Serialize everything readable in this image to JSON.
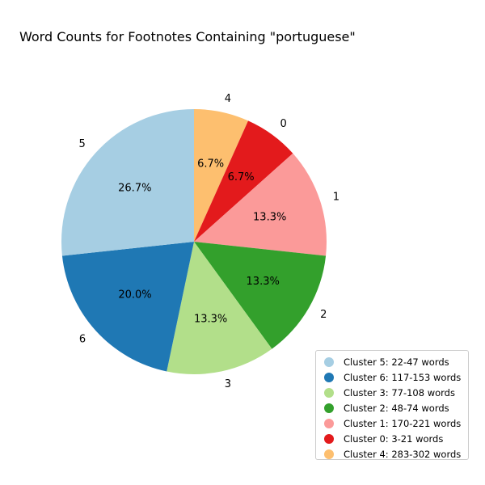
{
  "chart_data": {
    "type": "pie",
    "title": "Word Counts for Footnotes Containing \"portuguese\"",
    "start_angle_deg": 90,
    "direction": "clockwise",
    "slices": [
      {
        "label": "4",
        "value": 6.7,
        "pct_label": "6.7%",
        "color": "#fdbf6f"
      },
      {
        "label": "0",
        "value": 6.7,
        "pct_label": "6.7%",
        "color": "#e31a1c"
      },
      {
        "label": "1",
        "value": 13.3,
        "pct_label": "13.3%",
        "color": "#fb9a99"
      },
      {
        "label": "2",
        "value": 13.3,
        "pct_label": "13.3%",
        "color": "#33a02c"
      },
      {
        "label": "3",
        "value": 13.3,
        "pct_label": "13.3%",
        "color": "#b2df8a"
      },
      {
        "label": "6",
        "value": 20.0,
        "pct_label": "20.0%",
        "color": "#1f78b4"
      },
      {
        "label": "5",
        "value": 26.7,
        "pct_label": "26.7%",
        "color": "#a6cee3"
      }
    ],
    "legend": {
      "placement": "lower-right",
      "entries": [
        {
          "text": "Cluster 5: 22-47 words",
          "color": "#a6cee3"
        },
        {
          "text": "Cluster 6: 117-153 words",
          "color": "#1f78b4"
        },
        {
          "text": "Cluster 3: 77-108 words",
          "color": "#b2df8a"
        },
        {
          "text": "Cluster 2: 48-74 words",
          "color": "#33a02c"
        },
        {
          "text": "Cluster 1: 170-221 words",
          "color": "#fb9a99"
        },
        {
          "text": "Cluster 0: 3-21 words",
          "color": "#e31a1c"
        },
        {
          "text": "Cluster 4: 283-302 words",
          "color": "#fdbf6f"
        }
      ]
    }
  }
}
